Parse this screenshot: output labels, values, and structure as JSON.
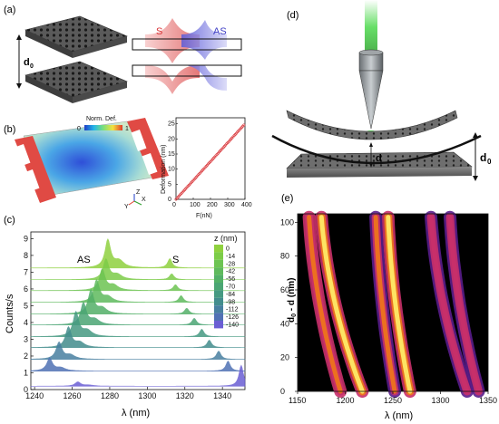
{
  "panels": {
    "a": {
      "label": "(a)",
      "gap_label": "d",
      "gap_sub": "0",
      "mode_s": "S",
      "mode_as": "AS",
      "colors": {
        "s": "#e06060",
        "as": "#5a5ad8"
      }
    },
    "b": {
      "label": "(b)",
      "colorbar_title": "Norm. Def.",
      "colorbar_min": "0",
      "colorbar_max": "1",
      "inset": {
        "xlabel": "F(nN)",
        "ylabel": "Deformation (nm)",
        "xticks": [
          "0",
          "100",
          "200",
          "300",
          "400"
        ],
        "yticks": [
          "0",
          "5",
          "10",
          "15",
          "20",
          "25"
        ]
      },
      "axes_y": "Y",
      "axes_z": "Z",
      "axes_x": "X"
    },
    "c": {
      "label": "(c)",
      "ylabel": "Counts/s",
      "xlabel": "λ (nm)",
      "annot_as": "AS",
      "annot_s": "S",
      "legend_title": "z (nm)"
    },
    "d": {
      "label": "(d)",
      "gap_label": "d",
      "gap_sub": "0",
      "small_gap": "d"
    },
    "e": {
      "label": "(e)",
      "ylabel": "d",
      "ylabel_sub": "0",
      "ylabel_rest": " - d (nm)",
      "xlabel": "λ (nm)"
    }
  },
  "chart_data": [
    {
      "type": "line",
      "panel": "b-inset",
      "xlabel": "F(nN)",
      "ylabel": "Deformation (nm)",
      "xlim": [
        0,
        400
      ],
      "ylim": [
        0,
        27
      ],
      "x": [
        0,
        25,
        50,
        75,
        100,
        125,
        150,
        175,
        200,
        225,
        250,
        275,
        300,
        325,
        350,
        375,
        400
      ],
      "y": [
        0,
        1.56,
        3.13,
        4.69,
        6.25,
        7.81,
        9.38,
        10.94,
        12.5,
        14.06,
        15.63,
        17.19,
        18.75,
        20.31,
        21.88,
        23.44,
        25
      ]
    },
    {
      "type": "line",
      "panel": "c",
      "xlabel": "λ (nm)",
      "ylabel": "Counts/s",
      "xlim": [
        1238,
        1352
      ],
      "ylim": [
        0,
        9.4
      ],
      "xticks": [
        1240,
        1260,
        1280,
        1300,
        1320,
        1340
      ],
      "yticks": [
        0,
        1,
        2,
        3,
        4,
        5,
        6,
        7,
        8,
        9
      ],
      "legend_title": "z (nm)",
      "series": [
        {
          "name": "0",
          "offset": 7.25,
          "as_peak": 1279,
          "as_height": 1.65,
          "s_peak": 1312,
          "s_height": 0.55,
          "color": "#8fd13f"
        },
        {
          "name": "-14",
          "offset": 6.55,
          "as_peak": 1278,
          "as_height": 1.2,
          "s_peak": 1313,
          "s_height": 0.35,
          "color": "#7ccc48"
        },
        {
          "name": "-28",
          "offset": 5.9,
          "as_peak": 1276,
          "as_height": 1.25,
          "s_peak": 1315,
          "s_height": 0.35,
          "color": "#6dc452"
        },
        {
          "name": "-42",
          "offset": 5.2,
          "as_peak": 1273,
          "as_height": 1.3,
          "s_peak": 1318,
          "s_height": 0.4,
          "color": "#5fba5d"
        },
        {
          "name": "-56",
          "offset": 4.5,
          "as_peak": 1270,
          "as_height": 1.4,
          "s_peak": 1321,
          "s_height": 0.35,
          "color": "#53b068"
        },
        {
          "name": "-70",
          "offset": 3.85,
          "as_peak": 1266,
          "as_height": 1.3,
          "s_peak": 1325,
          "s_height": 0.4,
          "color": "#4ba574"
        },
        {
          "name": "-84",
          "offset": 3.15,
          "as_peak": 1262,
          "as_height": 1.45,
          "s_peak": 1329,
          "s_height": 0.45,
          "color": "#469a82"
        },
        {
          "name": "-98",
          "offset": 2.5,
          "as_peak": 1258,
          "as_height": 1.2,
          "s_peak": 1333,
          "s_height": 0.45,
          "color": "#438d8d"
        },
        {
          "name": "-112",
          "offset": 1.8,
          "as_peak": 1253,
          "as_height": 1.0,
          "s_peak": 1338,
          "s_height": 0.5,
          "color": "#4880a0"
        },
        {
          "name": "-126",
          "offset": 1.1,
          "as_peak": 1248,
          "as_height": 0.75,
          "s_peak": 1343,
          "s_height": 0.6,
          "color": "#5072b4"
        },
        {
          "name": "-140",
          "offset": 0.2,
          "as_peak": 1263,
          "as_height": 0.25,
          "s_peak": 1350,
          "s_height": 1.25,
          "color": "#6a5fd4"
        }
      ]
    },
    {
      "type": "heatmap",
      "panel": "e",
      "xlabel": "λ (nm)",
      "ylabel": "d0 - d (nm)",
      "xlim": [
        1150,
        1350
      ],
      "ylim": [
        0,
        105
      ],
      "xticks": [
        1150,
        1200,
        1250,
        1300,
        1350
      ],
      "yticks": [
        0,
        20,
        40,
        60,
        80,
        100
      ],
      "bands": [
        {
          "x_at_top": 1175,
          "x_at_bottom": 1218,
          "intensity": 1.0
        },
        {
          "x_at_top": 1162,
          "x_at_bottom": 1195,
          "intensity": 0.72
        },
        {
          "x_at_top": 1245,
          "x_at_bottom": 1268,
          "intensity": 0.95
        },
        {
          "x_at_top": 1232,
          "x_at_bottom": 1252,
          "intensity": 0.65
        },
        {
          "x_at_top": 1290,
          "x_at_bottom": 1328,
          "intensity": 0.55
        },
        {
          "x_at_top": 1310,
          "x_at_bottom": 1340,
          "intensity": 0.4
        }
      ]
    }
  ]
}
